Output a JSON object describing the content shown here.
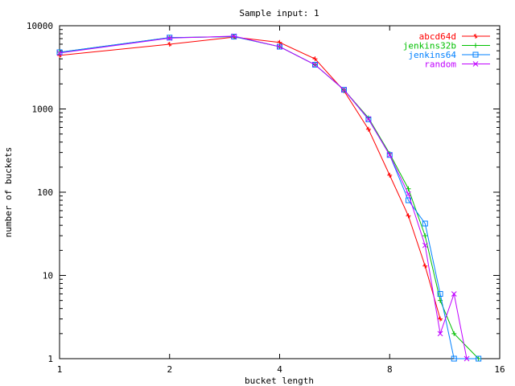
{
  "chart_data": {
    "type": "line",
    "title": "Sample input: 1",
    "xlabel": "bucket length",
    "ylabel": "number of buckets",
    "xscale": "log2",
    "yscale": "log10",
    "xlim": [
      1,
      16
    ],
    "ylim": [
      1,
      10000
    ],
    "xticks": [
      1,
      2,
      4,
      8,
      16
    ],
    "xtick_labels": [
      "1",
      "2",
      "4",
      "8",
      "16"
    ],
    "yticks": [
      1,
      10,
      100,
      1000,
      10000
    ],
    "ytick_labels": [
      "1",
      "10",
      "100",
      "1000",
      "10000"
    ],
    "legend_position": "top-right",
    "series": [
      {
        "name": "abcd64d",
        "color": "#ff0000",
        "marker": "plus",
        "x": [
          1,
          2,
          3,
          4,
          5,
          6,
          7,
          8,
          9,
          10,
          11
        ],
        "y": [
          4400,
          6000,
          7300,
          6300,
          4000,
          1650,
          570,
          160,
          52,
          13,
          3
        ]
      },
      {
        "name": "jenkins32b",
        "color": "#00c000",
        "marker": "cross",
        "x": [
          1,
          2,
          3,
          4,
          5,
          6,
          7,
          8,
          9,
          10,
          11,
          12,
          14
        ],
        "y": [
          4800,
          7200,
          7400,
          5600,
          3400,
          1700,
          780,
          290,
          110,
          30,
          5,
          2,
          1
        ]
      },
      {
        "name": "jenkins64",
        "color": "#0080ff",
        "marker": "square",
        "x": [
          1,
          2,
          3,
          4,
          5,
          6,
          7,
          8,
          9,
          10,
          11,
          12,
          14
        ],
        "y": [
          4800,
          7200,
          7400,
          5600,
          3400,
          1700,
          750,
          280,
          80,
          42,
          6,
          1,
          1
        ]
      },
      {
        "name": "random",
        "color": "#c000ff",
        "marker": "x",
        "x": [
          1,
          2,
          3,
          4,
          5,
          6,
          7,
          8,
          9,
          10,
          11,
          12,
          13
        ],
        "y": [
          4700,
          7100,
          7500,
          5600,
          3400,
          1700,
          760,
          280,
          95,
          23,
          2,
          6,
          1
        ]
      }
    ]
  }
}
